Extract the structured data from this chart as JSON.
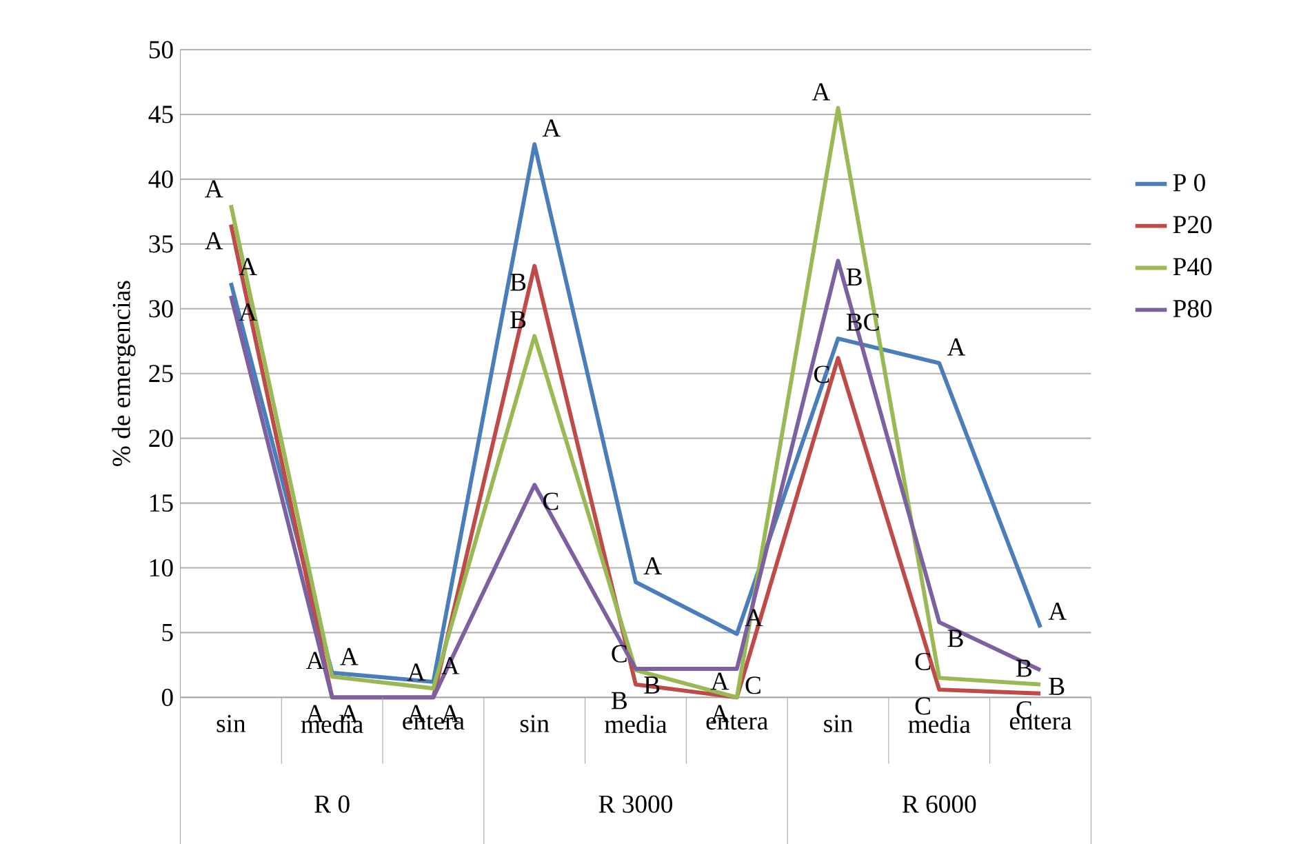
{
  "chart_data": {
    "type": "line",
    "ylabel": "% de emergencias",
    "categories": [
      "sin",
      "media",
      "entera",
      "sin",
      "media",
      "entera",
      "sin",
      "media",
      "entera"
    ],
    "annotations": [
      "R 0",
      "R 3000",
      "R 6000"
    ],
    "ylim": [
      0,
      50
    ],
    "yticks": [
      0,
      5,
      10,
      15,
      20,
      25,
      30,
      35,
      40,
      45,
      50
    ],
    "grid": "y",
    "legend": "right",
    "line_style": "solid",
    "marker": "none",
    "series": [
      {
        "name": "P 0",
        "color": "#4a7ebb",
        "values": [
          32,
          1.9,
          1.2,
          42.7,
          8.9,
          4.9,
          27.7,
          25.8,
          5.4
        ],
        "value_labels": [
          "A",
          "A",
          "A",
          "A",
          "A",
          "A",
          "BC",
          "A",
          "A"
        ]
      },
      {
        "name": "P20",
        "color": "#be4b48",
        "values": [
          36.5,
          0,
          0,
          33.3,
          1,
          0,
          26.2,
          0.6,
          0.3
        ],
        "value_labels": [
          "A",
          "A",
          "A",
          "B",
          "B",
          "A",
          "C",
          "C",
          "C"
        ]
      },
      {
        "name": "P40",
        "color": "#98b954",
        "values": [
          38,
          1.6,
          0.7,
          27.9,
          2.1,
          0,
          45.5,
          1.5,
          1
        ],
        "value_labels": [
          "A",
          "A",
          "A",
          "B",
          "C",
          "A",
          "A",
          "C",
          "B"
        ]
      },
      {
        "name": "P80",
        "color": "#7d60a0",
        "values": [
          31,
          0,
          0,
          16.4,
          2.2,
          2.2,
          33.7,
          5.8,
          2.1
        ],
        "value_labels": [
          "A",
          "A",
          "A",
          "C",
          "B",
          "C",
          "B",
          "B",
          "B"
        ]
      }
    ]
  }
}
